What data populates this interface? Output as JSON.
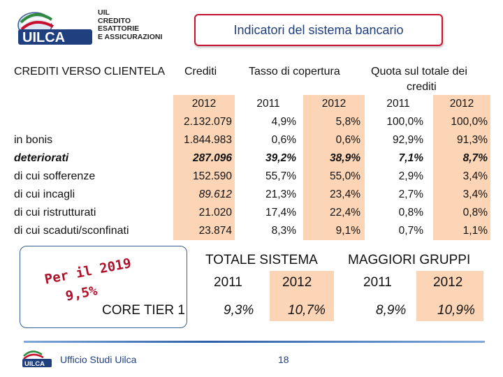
{
  "logo": {
    "wordmark": "UILCA",
    "lines": [
      "UIL",
      "CREDITO",
      "ESATTORIE",
      "E ASSICURAZIONI"
    ]
  },
  "title": "Indicatori del sistema bancario",
  "table": {
    "section_title": "CREDITI VERSO CLIENTELA",
    "headers": {
      "crediti": "Crediti",
      "tasso": "Tasso di copertura",
      "quota_line1": "Quota sul totale dei",
      "quota_line2": "crediti"
    },
    "years": {
      "crediti": "2012",
      "tasso_a": "2011",
      "tasso_b": "2012",
      "quota_a": "2011",
      "quota_b": "2012"
    },
    "rows": [
      {
        "label": "",
        "crediti": "2.132.079",
        "t2011": "4,9%",
        "t2012": "5,8%",
        "q2011": "100,0%",
        "q2012": "100,0%"
      },
      {
        "label": "in bonis",
        "crediti": "1.844.983",
        "t2011": "0,6%",
        "t2012": "0,6%",
        "q2011": "92,9%",
        "q2012": "91,3%"
      },
      {
        "label": "deteriorati",
        "crediti": "287.096",
        "t2011": "39,2%",
        "t2012": "38,9%",
        "q2011": "7,1%",
        "q2012": "8,7%"
      },
      {
        "label": "di cui sofferenze",
        "crediti": "152.590",
        "t2011": "55,7%",
        "t2012": "55,0%",
        "q2011": "2,9%",
        "q2012": "3,4%"
      },
      {
        "label": "di cui incagli",
        "crediti": "89.612",
        "t2011": "21,3%",
        "t2012": "23,4%",
        "q2011": "2,7%",
        "q2012": "3,4%"
      },
      {
        "label": "di cui ristrutturati",
        "crediti": "21.020",
        "t2011": "17,4%",
        "t2012": "22,4%",
        "q2011": "0,8%",
        "q2012": "0,8%"
      },
      {
        "label": "di cui scaduti/sconfinati",
        "crediti": "23.874",
        "t2011": "8,3%",
        "t2012": "9,1%",
        "q2011": "0,7%",
        "q2012": "1,1%"
      }
    ]
  },
  "core": {
    "slant_line1": "Per il 2019",
    "slant_line2": "9,5%",
    "label": "CORE TIER 1",
    "totale_title": "TOTALE SISTEMA",
    "gruppi_title": "MAGGIORI GRUPPI",
    "totale": {
      "y2011": "2011",
      "y2012": "2012",
      "v2011": "9,3%",
      "v2012": "10,7%"
    },
    "gruppi": {
      "y2011": "2011",
      "y2012": "2012",
      "v2011": "8,9%",
      "v2012": "10,9%"
    }
  },
  "footer": {
    "logo_word": "UILCA",
    "text": "Ufficio Studi Uilca",
    "page": "18"
  },
  "colors": {
    "accent_red": "#c8102e",
    "brand_blue": "#1f3f7f",
    "shade": "#fbd5b5"
  }
}
